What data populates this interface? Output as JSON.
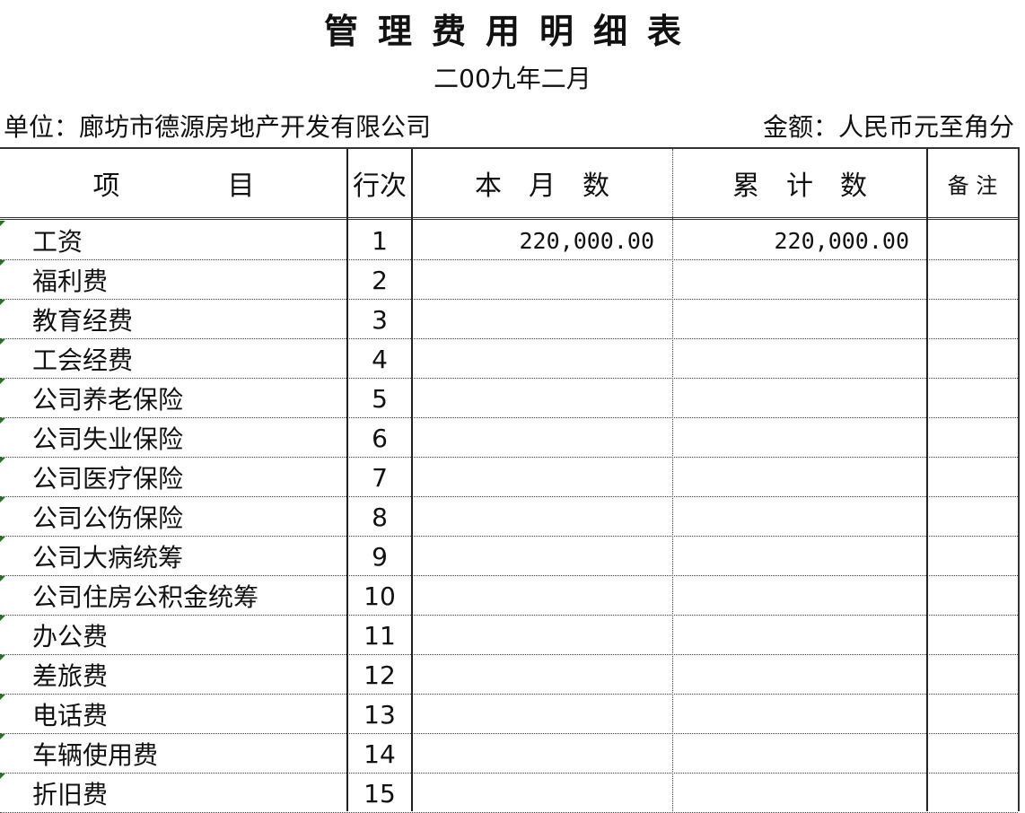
{
  "title": "管理费用明细表",
  "subtitle": "二00九年二月",
  "unit": "单位：廊坊市德源房地产开发有限公司",
  "currency": "金额：人民币元至角分",
  "headers": {
    "item": "项　　　　目",
    "line": "行次",
    "month": "本　月　数",
    "cumulative": "累　计　数",
    "note": "备 注"
  },
  "rows": [
    {
      "item": "工资",
      "line": "1",
      "month": "220,000.00",
      "cumulative": "220,000.00",
      "note": ""
    },
    {
      "item": "福利费",
      "line": "2",
      "month": "",
      "cumulative": "",
      "note": ""
    },
    {
      "item": "教育经费",
      "line": "3",
      "month": "",
      "cumulative": "",
      "note": ""
    },
    {
      "item": "工会经费",
      "line": "4",
      "month": "",
      "cumulative": "",
      "note": ""
    },
    {
      "item": "公司养老保险",
      "line": "5",
      "month": "",
      "cumulative": "",
      "note": ""
    },
    {
      "item": "公司失业保险",
      "line": "6",
      "month": "",
      "cumulative": "",
      "note": ""
    },
    {
      "item": "公司医疗保险",
      "line": "7",
      "month": "",
      "cumulative": "",
      "note": ""
    },
    {
      "item": "公司公伤保险",
      "line": "8",
      "month": "",
      "cumulative": "",
      "note": ""
    },
    {
      "item": "公司大病统筹",
      "line": "9",
      "month": "",
      "cumulative": "",
      "note": ""
    },
    {
      "item": "公司住房公积金统筹",
      "line": "10",
      "month": "",
      "cumulative": "",
      "note": ""
    },
    {
      "item": "办公费",
      "line": "11",
      "month": "",
      "cumulative": "",
      "note": ""
    },
    {
      "item": "差旅费",
      "line": "12",
      "month": "",
      "cumulative": "",
      "note": ""
    },
    {
      "item": "电话费",
      "line": "13",
      "month": "",
      "cumulative": "",
      "note": ""
    },
    {
      "item": "车辆使用费",
      "line": "14",
      "month": "",
      "cumulative": "",
      "note": ""
    },
    {
      "item": "折旧费",
      "line": "15",
      "month": "",
      "cumulative": "",
      "note": ""
    }
  ],
  "colors": {
    "error_indicator": "#1a7a1a",
    "grid": "#333333"
  }
}
